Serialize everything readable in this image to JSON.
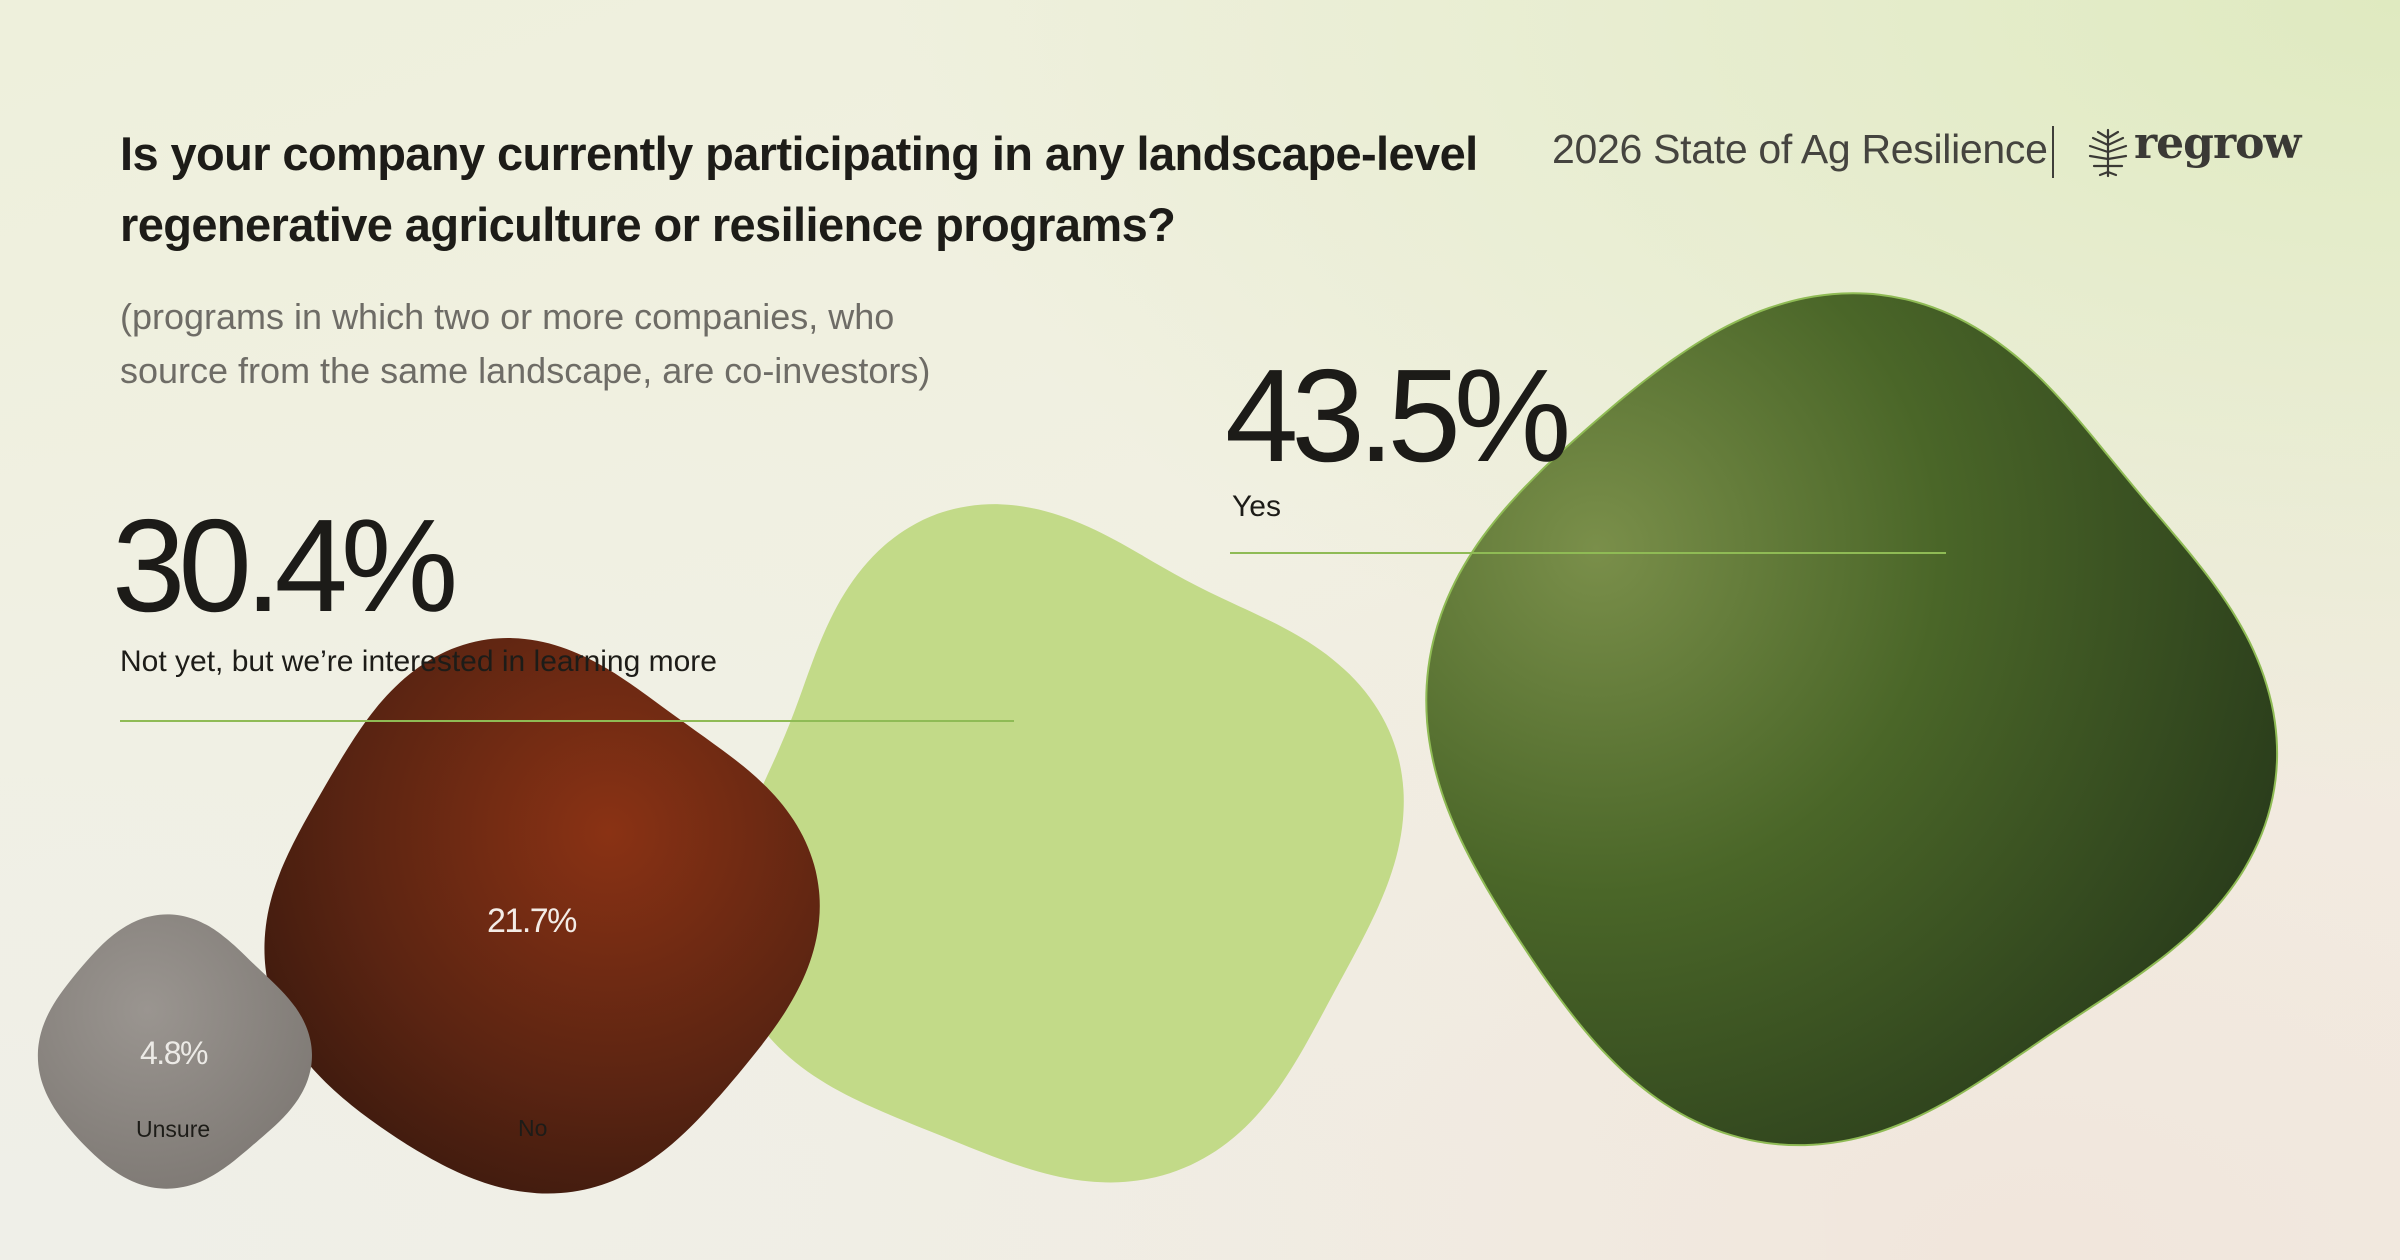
{
  "header": {
    "title": "Is your company currently participating in any landscape-level regenerative agriculture or resilience programs?",
    "subtitle": "(programs in which two or more companies, who source from the same landscape, are co-investors)",
    "report_name": "2026 State of Ag Resilience",
    "brand_name": "regrow",
    "logo_icon": "leaf-icon"
  },
  "chart_data": {
    "type": "bubble",
    "title": "Is your company currently participating in any landscape-level regenerative agriculture or resilience programs?",
    "subtitle": "(programs in which two or more companies, who source from the same landscape, are co-investors)",
    "categories": [
      "Yes",
      "Not yet, but we’re interested in learning more",
      "No",
      "Unsure"
    ],
    "values": [
      43.5,
      30.4,
      21.7,
      4.8
    ],
    "value_labels": [
      "43.5%",
      "30.4%",
      "21.7%",
      "4.8%"
    ],
    "unit": "%",
    "colors": [
      "#4a6628",
      "#c2da88",
      "#6b2a12",
      "#8c8782"
    ],
    "legend": "none",
    "grid": false
  }
}
